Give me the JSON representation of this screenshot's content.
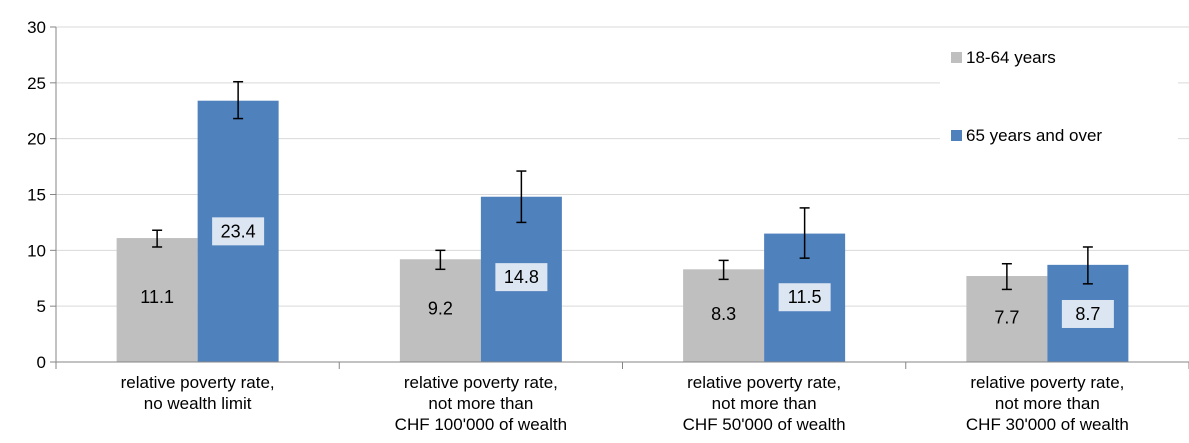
{
  "chart_data": {
    "type": "bar",
    "categories": [
      [
        "relative poverty rate,",
        "no wealth limit"
      ],
      [
        "relative poverty rate,",
        "not more than",
        "CHF 100'000 of wealth"
      ],
      [
        "relative poverty rate,",
        "not more than",
        "CHF 50'000 of wealth"
      ],
      [
        "relative poverty rate,",
        "not more than",
        "CHF 30'000 of wealth"
      ]
    ],
    "series": [
      {
        "name": "18-64 years",
        "color": "#bfbfbf",
        "values": [
          11.1,
          9.2,
          8.3,
          7.7
        ],
        "labels": [
          "11.1",
          "9.2",
          "8.3",
          "7.7"
        ],
        "error_low": [
          10.3,
          8.3,
          7.4,
          6.5
        ],
        "error_high": [
          11.8,
          10.0,
          9.1,
          8.8
        ]
      },
      {
        "name": "65 years and over",
        "color": "#4f81bd",
        "values": [
          23.4,
          14.8,
          11.5,
          8.7
        ],
        "labels": [
          "23.4",
          "14.8",
          "11.5",
          "8.7"
        ],
        "error_low": [
          21.8,
          12.5,
          9.3,
          7.0
        ],
        "error_high": [
          25.1,
          17.1,
          13.8,
          10.3
        ]
      }
    ],
    "yticks": [
      "0",
      "5",
      "10",
      "15",
      "20",
      "25",
      "30"
    ],
    "ylim": [
      0,
      30
    ],
    "grid": true,
    "legend": "top-right",
    "title": "",
    "xlabel": "",
    "ylabel": ""
  }
}
